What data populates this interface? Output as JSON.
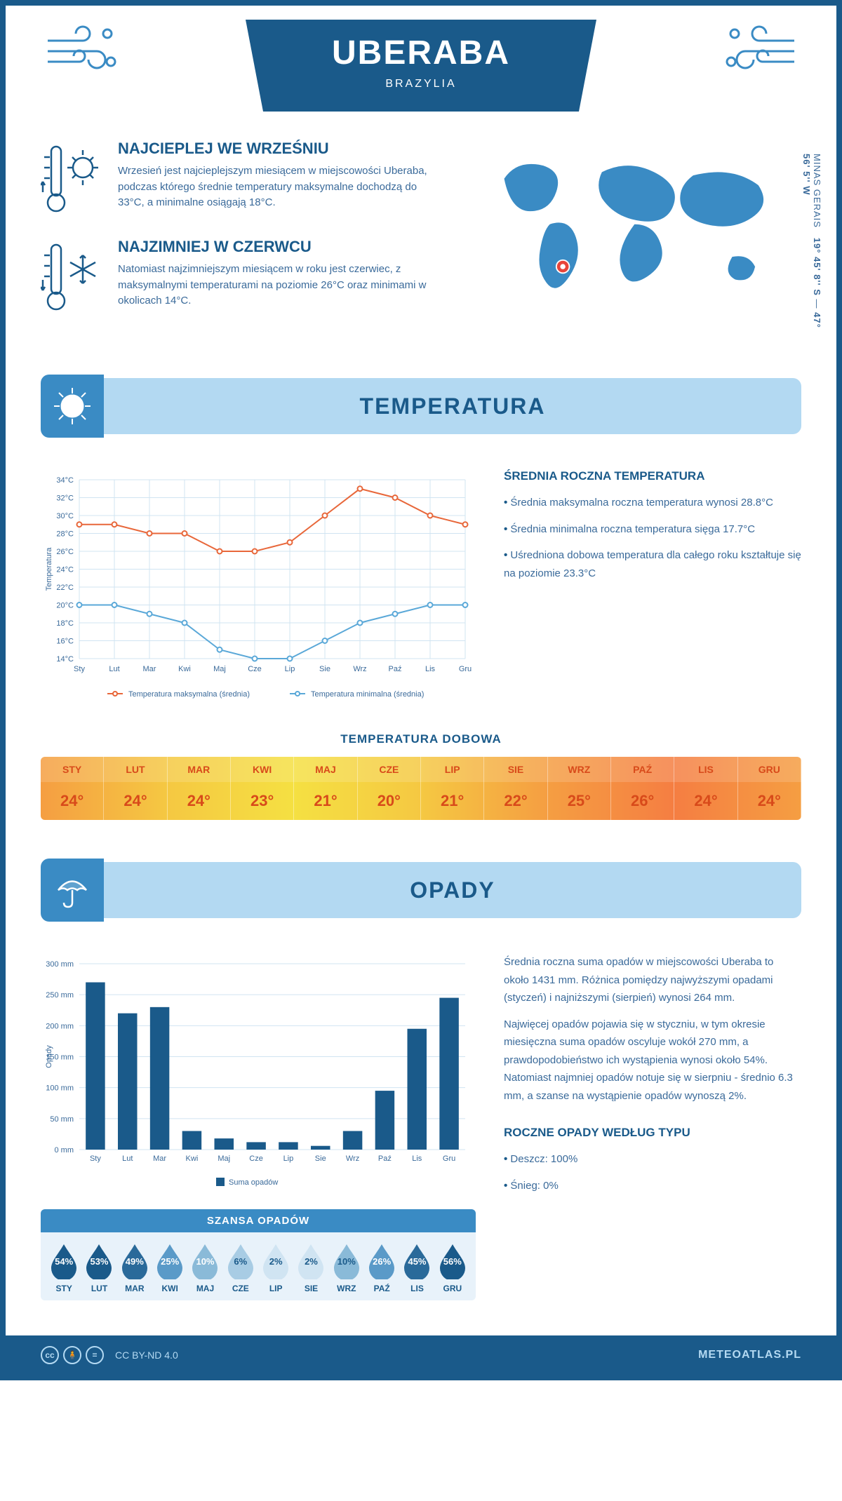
{
  "header": {
    "city": "UBERABA",
    "country": "BRAZYLIA"
  },
  "coords": {
    "lat": "19° 45' 8'' S",
    "lon": "47° 56' 5'' W",
    "region": "MINAS GERAIS"
  },
  "intro": {
    "warm": {
      "title": "NAJCIEPLEJ WE WRZEŚNIU",
      "text": "Wrzesień jest najcieplejszym miesiącem w miejscowości Uberaba, podczas którego średnie temperatury maksymalne dochodzą do 33°C, a minimalne osiągają 18°C."
    },
    "cold": {
      "title": "NAJZIMNIEJ W CZERWCU",
      "text": "Natomiast najzimniejszym miesiącem w roku jest czerwiec, z maksymalnymi temperaturami na poziomie 26°C oraz minimami w okolicach 14°C."
    }
  },
  "temperature": {
    "section_title": "TEMPERATURA",
    "chart": {
      "type": "line",
      "months": [
        "Sty",
        "Lut",
        "Mar",
        "Kwi",
        "Maj",
        "Cze",
        "Lip",
        "Sie",
        "Wrz",
        "Paź",
        "Lis",
        "Gru"
      ],
      "ylim": [
        14,
        34
      ],
      "ytick_step": 2,
      "ylabel": "Temperatura",
      "series": [
        {
          "name": "Temperatura maksymalna (średnia)",
          "color": "#e8673a",
          "values": [
            29,
            29,
            28,
            28,
            26,
            26,
            27,
            30,
            33,
            32,
            30,
            29
          ]
        },
        {
          "name": "Temperatura minimalna (średnia)",
          "color": "#5aa8d8",
          "values": [
            20,
            20,
            19,
            18,
            15,
            14,
            14,
            16,
            18,
            19,
            20,
            20
          ]
        }
      ],
      "grid_color": "#d0e4f2",
      "background": "#ffffff",
      "line_width": 2,
      "marker": "circle"
    },
    "summary": {
      "title": "ŚREDNIA ROCZNA TEMPERATURA",
      "items": [
        "Średnia maksymalna roczna temperatura wynosi 28.8°C",
        "Średnia minimalna roczna temperatura sięga 17.7°C",
        "Uśredniona dobowa temperatura dla całego roku kształtuje się na poziomie 23.3°C"
      ]
    },
    "daily": {
      "title": "TEMPERATURA DOBOWA",
      "months": [
        "STY",
        "LUT",
        "MAR",
        "KWI",
        "MAJ",
        "CZE",
        "LIP",
        "SIE",
        "WRZ",
        "PAŹ",
        "LIS",
        "GRU"
      ],
      "values": [
        "24°",
        "24°",
        "24°",
        "23°",
        "21°",
        "20°",
        "21°",
        "22°",
        "25°",
        "26°",
        "24°",
        "24°"
      ],
      "header_bg": "#f5a842",
      "row_bg_gradient": [
        "#f59e42",
        "#f5c842",
        "#f5e042",
        "#f5c842",
        "#f57e42"
      ]
    }
  },
  "precipitation": {
    "section_title": "OPADY",
    "chart": {
      "type": "bar",
      "months": [
        "Sty",
        "Lut",
        "Mar",
        "Kwi",
        "Maj",
        "Cze",
        "Lip",
        "Sie",
        "Wrz",
        "Paź",
        "Lis",
        "Gru"
      ],
      "values": [
        270,
        220,
        230,
        30,
        18,
        12,
        12,
        6,
        30,
        95,
        195,
        245
      ],
      "ylim": [
        0,
        300
      ],
      "ytick_step": 50,
      "ylabel": "Opady",
      "bar_color": "#1a5a8a",
      "legend_label": "Suma opadów",
      "grid_color": "#d0e4f2"
    },
    "text1": "Średnia roczna suma opadów w miejscowości Uberaba to około 1431 mm. Różnica pomiędzy najwyższymi opadami (styczeń) i najniższymi (sierpień) wynosi 264 mm.",
    "text2": "Najwięcej opadów pojawia się w styczniu, w tym okresie miesięczna suma opadów oscyluje wokół 270 mm, a prawdopodobieństwo ich wystąpienia wynosi około 54%. Natomiast najmniej opadów notuje się w sierpniu - średnio 6.3 mm, a szanse na wystąpienie opadów wynoszą 2%.",
    "chance": {
      "title": "SZANSA OPADÓW",
      "months": [
        "STY",
        "LUT",
        "MAR",
        "KWI",
        "MAJ",
        "CZE",
        "LIP",
        "SIE",
        "WRZ",
        "PAŹ",
        "LIS",
        "GRU"
      ],
      "values": [
        "54%",
        "53%",
        "49%",
        "25%",
        "10%",
        "6%",
        "2%",
        "2%",
        "10%",
        "26%",
        "45%",
        "56%"
      ],
      "colors": [
        "#1a5a8a",
        "#1a5a8a",
        "#2a6a9a",
        "#5a9ac8",
        "#8abad8",
        "#a8cce4",
        "#d0e4f2",
        "#d0e4f2",
        "#8abad8",
        "#5a9ac8",
        "#2a6a9a",
        "#1a5a8a"
      ]
    },
    "by_type": {
      "title": "ROCZNE OPADY WEDŁUG TYPU",
      "items": [
        "Deszcz: 100%",
        "Śnieg: 0%"
      ]
    }
  },
  "footer": {
    "license": "CC BY-ND 4.0",
    "brand": "METEOATLAS.PL"
  }
}
